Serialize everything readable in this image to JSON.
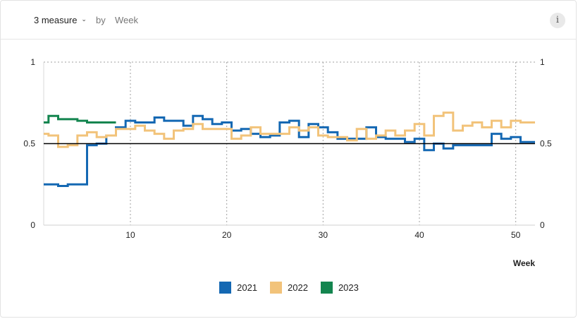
{
  "header": {
    "measure_label": "3 measure",
    "measure_chevron": "⌄",
    "by_label": "by",
    "dimension_label": "Week",
    "info_glyph": "i"
  },
  "colors": {
    "2021": "#1468b3",
    "2022": "#f2c37a",
    "2023": "#13854f",
    "reference": "#000000",
    "grid": "#a0a0a0"
  },
  "chart_data": {
    "type": "line",
    "step": true,
    "title": "",
    "xlabel": "Week",
    "ylabel": "",
    "xlim": [
      1,
      52
    ],
    "ylim": [
      0,
      1
    ],
    "x_ticks": [
      10,
      20,
      30,
      40,
      50
    ],
    "y_ticks_left": [
      "0",
      "0.5",
      "1"
    ],
    "y_ticks_right": [
      "0",
      "0.5",
      "1"
    ],
    "y_tick_values": [
      0,
      0.5,
      1
    ],
    "reference_line": 0.5,
    "grid": "vertical and top dotted",
    "legend_position": "bottom-center",
    "series": [
      {
        "name": "2021",
        "x": [
          1,
          2,
          3,
          4,
          5,
          6,
          7,
          8,
          9,
          10,
          11,
          12,
          13,
          14,
          15,
          16,
          17,
          18,
          19,
          20,
          21,
          22,
          23,
          24,
          25,
          26,
          27,
          28,
          29,
          30,
          31,
          32,
          33,
          34,
          35,
          36,
          37,
          38,
          39,
          40,
          41,
          42,
          43,
          44,
          45,
          46,
          47,
          48,
          49,
          50,
          51,
          52
        ],
        "values": [
          0.25,
          0.25,
          0.24,
          0.25,
          0.25,
          0.49,
          0.5,
          0.55,
          0.6,
          0.64,
          0.63,
          0.63,
          0.66,
          0.64,
          0.64,
          0.61,
          0.67,
          0.65,
          0.62,
          0.63,
          0.58,
          0.59,
          0.56,
          0.54,
          0.55,
          0.63,
          0.64,
          0.54,
          0.62,
          0.6,
          0.57,
          0.53,
          0.53,
          0.53,
          0.6,
          0.54,
          0.53,
          0.53,
          0.51,
          0.53,
          0.46,
          0.5,
          0.47,
          0.49,
          0.49,
          0.49,
          0.49,
          0.56,
          0.53,
          0.54,
          0.51,
          0.51
        ]
      },
      {
        "name": "2022",
        "x": [
          1,
          2,
          3,
          4,
          5,
          6,
          7,
          8,
          9,
          10,
          11,
          12,
          13,
          14,
          15,
          16,
          17,
          18,
          19,
          20,
          21,
          22,
          23,
          24,
          25,
          26,
          27,
          28,
          29,
          30,
          31,
          32,
          33,
          34,
          35,
          36,
          37,
          38,
          39,
          40,
          41,
          42,
          43,
          44,
          45,
          46,
          47,
          48,
          49,
          50,
          51,
          52
        ],
        "values": [
          0.56,
          0.55,
          0.48,
          0.49,
          0.55,
          0.57,
          0.54,
          0.55,
          0.59,
          0.59,
          0.61,
          0.58,
          0.56,
          0.53,
          0.58,
          0.59,
          0.62,
          0.59,
          0.59,
          0.59,
          0.53,
          0.55,
          0.6,
          0.56,
          0.56,
          0.56,
          0.6,
          0.58,
          0.6,
          0.55,
          0.54,
          0.54,
          0.52,
          0.59,
          0.53,
          0.55,
          0.58,
          0.55,
          0.58,
          0.62,
          0.55,
          0.67,
          0.69,
          0.58,
          0.61,
          0.63,
          0.6,
          0.64,
          0.6,
          0.64,
          0.63,
          0.63
        ]
      },
      {
        "name": "2023",
        "x": [
          1,
          2,
          3,
          4,
          5,
          6,
          7,
          8
        ],
        "values": [
          0.63,
          0.67,
          0.65,
          0.65,
          0.64,
          0.63,
          0.63,
          0.63
        ]
      }
    ]
  }
}
